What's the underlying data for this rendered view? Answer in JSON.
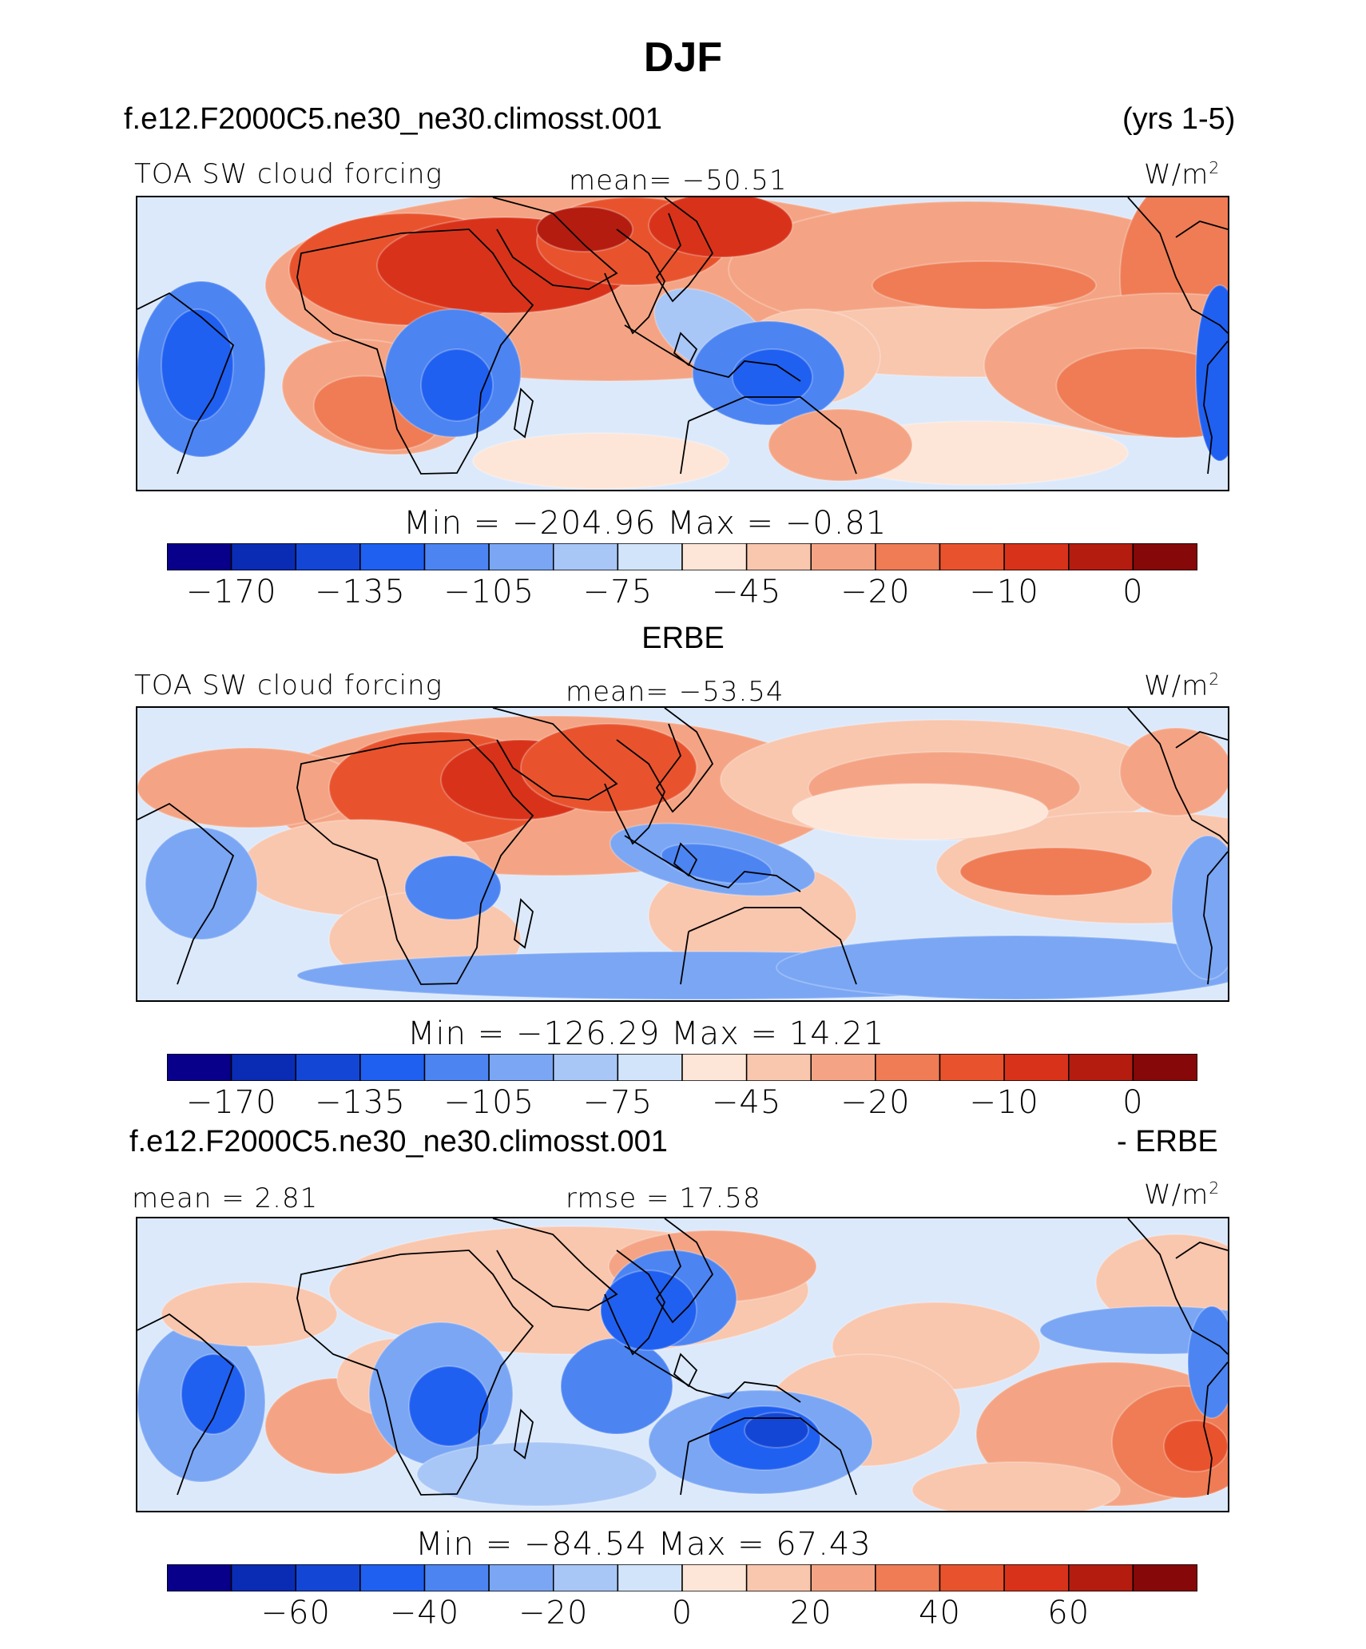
{
  "title": "DJF",
  "panel1": {
    "case_name": "f.e12.F2000C5.ne30_ne30.climosst.001",
    "years": "(yrs 1-5)",
    "variable": "TOA SW cloud forcing",
    "mean_label": "mean= −50.51",
    "units_base": "W/m",
    "units_sup": "2",
    "minmax": "Min  =  −204.96  Max  =    −0.81",
    "ticks": [
      "−170",
      "−135",
      "−105",
      "−75",
      "−45",
      "−20",
      "−10",
      "0"
    ]
  },
  "panel2": {
    "obs_name": "ERBE",
    "variable": "TOA SW cloud forcing",
    "mean_label": "mean= −53.54",
    "units_base": "W/m",
    "units_sup": "2",
    "minmax": "Min  =  −126.29  Max  =    14.21",
    "ticks": [
      "−170",
      "−135",
      "−105",
      "−75",
      "−45",
      "−20",
      "−10",
      "0"
    ]
  },
  "panel3": {
    "case_name": "f.e12.F2000C5.ne30_ne30.climosst.001",
    "diff_label": "- ERBE",
    "mean_label": "mean  =    2.81",
    "rmse_label": "rmse  =    17.58",
    "units_base": "W/m",
    "units_sup": "2",
    "minmax": "Min  =  −84.54  Max  =    67.43",
    "ticks": [
      "−60",
      "−40",
      "−20",
      "0",
      "20",
      "40",
      "60"
    ]
  },
  "colors": {
    "palette": [
      "#08008a",
      "#0a2cb4",
      "#1446d6",
      "#2060f0",
      "#4c84f2",
      "#7aa6f4",
      "#a8c6f6",
      "#d2e4fa",
      "#fde6d8",
      "#f9c6ae",
      "#f4a484",
      "#ef7c55",
      "#e8532e",
      "#d8331a",
      "#b41c10",
      "#860808"
    ],
    "map_background": "#dbe9fb"
  },
  "chart_data": [
    {
      "type": "heatmap",
      "title": "f.e12.F2000C5.ne30_ne30.climosst.001 (yrs 1-5)",
      "variable": "TOA SW cloud forcing",
      "units": "W/m2",
      "mean": -50.51,
      "min": -204.96,
      "max": -0.81,
      "colorbar_ticks": [
        -170,
        -135,
        -105,
        -75,
        -45,
        -20,
        -10,
        0
      ]
    },
    {
      "type": "heatmap",
      "title": "ERBE",
      "variable": "TOA SW cloud forcing",
      "units": "W/m2",
      "mean": -53.54,
      "min": -126.29,
      "max": 14.21,
      "colorbar_ticks": [
        -170,
        -135,
        -105,
        -75,
        -45,
        -20,
        -10,
        0
      ]
    },
    {
      "type": "heatmap",
      "title": "f.e12.F2000C5.ne30_ne30.climosst.001 - ERBE",
      "units": "W/m2",
      "mean": 2.81,
      "rmse": 17.58,
      "min": -84.54,
      "max": 67.43,
      "colorbar_ticks": [
        -60,
        -40,
        -20,
        0,
        20,
        40,
        60
      ]
    }
  ]
}
